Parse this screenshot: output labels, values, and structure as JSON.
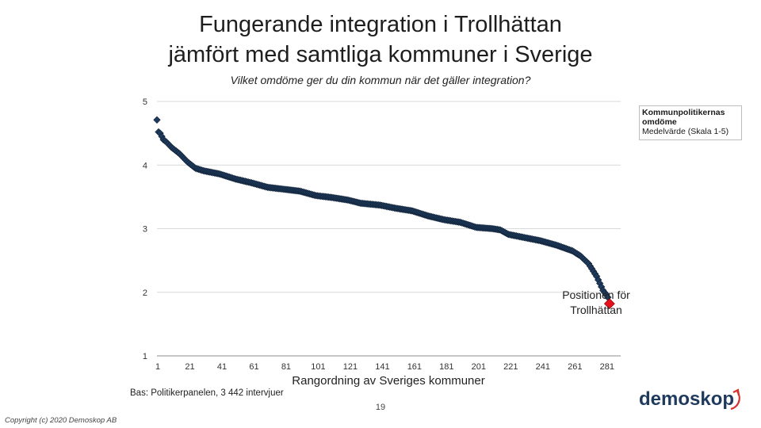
{
  "slide": {
    "title_line1": "Fungerande integration i Trollhättan",
    "title_line2": "jämfört med samtliga kommuner i Sverige",
    "subtitle": "Vilket omdöme ger du din kommun när det gäller integration?",
    "base_note": "Bas: Politikerpanelen, 3 442 intervjuer",
    "page_number": "19",
    "copyright": "Copyright (c) 2020 Demoskop AB",
    "logo_text": "demoskop"
  },
  "legend": {
    "line1": "Kommunpolitikernas",
    "line2": "omdöme",
    "line3": "Medelvärde (Skala 1-5)"
  },
  "annotation": {
    "line1": "Positionen för",
    "line2": "Trollhättan"
  },
  "colors": {
    "series": "#1f3a5c",
    "highlight": "#e8101a",
    "grid": "#d9d9d9",
    "logo": "#1f3a5c",
    "logo_arrow": "#d6302a"
  },
  "chart_data": {
    "type": "scatter",
    "xlabel": "Rangordning av Sveriges kommuner",
    "ylabel": "",
    "xlim": [
      1,
      290
    ],
    "ylim": [
      1,
      5
    ],
    "y_ticks": [
      "1",
      "2",
      "3",
      "4",
      "5"
    ],
    "x_ticks": [
      "1",
      "21",
      "41",
      "61",
      "81",
      "101",
      "121",
      "141",
      "161",
      "181",
      "201",
      "221",
      "241",
      "261",
      "281"
    ],
    "grid": "horizontal",
    "legend_position": "top-right",
    "series": [
      {
        "name": "Kommunpolitikernas omdöme",
        "x_range": [
          1,
          282
        ],
        "profile": [
          [
            1,
            4.71
          ],
          [
            2,
            4.52
          ],
          [
            3,
            4.5
          ],
          [
            5,
            4.4
          ],
          [
            7,
            4.36
          ],
          [
            10,
            4.28
          ],
          [
            15,
            4.18
          ],
          [
            20,
            4.05
          ],
          [
            25,
            3.95
          ],
          [
            30,
            3.91
          ],
          [
            40,
            3.86
          ],
          [
            50,
            3.78
          ],
          [
            60,
            3.72
          ],
          [
            70,
            3.65
          ],
          [
            80,
            3.62
          ],
          [
            90,
            3.59
          ],
          [
            100,
            3.52
          ],
          [
            110,
            3.49
          ],
          [
            120,
            3.45
          ],
          [
            128,
            3.4
          ],
          [
            140,
            3.37
          ],
          [
            150,
            3.32
          ],
          [
            160,
            3.28
          ],
          [
            170,
            3.2
          ],
          [
            180,
            3.14
          ],
          [
            190,
            3.1
          ],
          [
            200,
            3.02
          ],
          [
            210,
            3.0
          ],
          [
            215,
            2.98
          ],
          [
            220,
            2.91
          ],
          [
            230,
            2.86
          ],
          [
            240,
            2.81
          ],
          [
            250,
            2.74
          ],
          [
            260,
            2.65
          ],
          [
            265,
            2.57
          ],
          [
            270,
            2.45
          ],
          [
            275,
            2.25
          ],
          [
            279,
            2.03
          ],
          [
            281,
            1.96
          ],
          [
            282,
            1.92
          ]
        ]
      },
      {
        "name": "Trollhättan",
        "x": 283,
        "y": 1.82
      }
    ]
  }
}
